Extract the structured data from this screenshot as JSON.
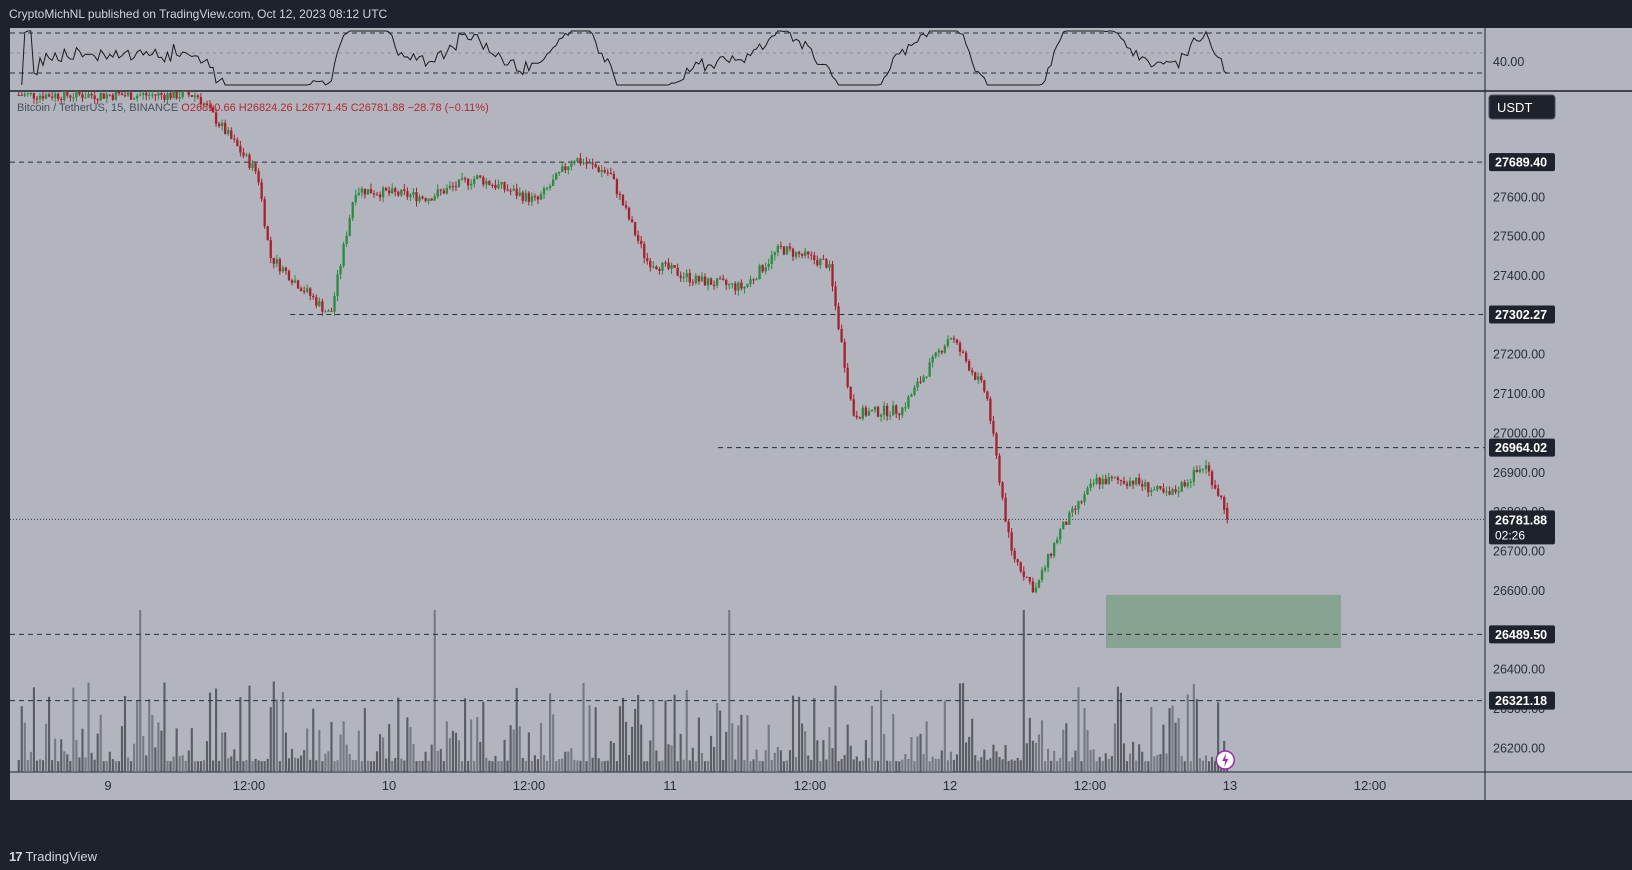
{
  "header": {
    "publish_text": "CryptoMichNL published on TradingView.com, Oct 12, 2023 08:12 UTC"
  },
  "footer": {
    "brand": "TradingView",
    "logo_mark": "17"
  },
  "legend": {
    "symbol": "Bitcoin / TetherUS, 15, BINANCE",
    "open": "O26810.66",
    "high": "H26824.26",
    "low": "L26771.45",
    "close": "C26781.88",
    "change": "−28.78 (−0.11%)"
  },
  "currency_button": "USDT",
  "rsi_panel": {
    "value_label": "40.00"
  },
  "countdown": "02:26",
  "colors": {
    "up": "#2a8c3c",
    "down": "#a8202c",
    "background": "#b2b5be",
    "frame": "#1e222d",
    "zone": "#7a9e82"
  },
  "chart_data": {
    "type": "candlestick",
    "symbol": "Bitcoin / TetherUS",
    "interval": "15",
    "exchange": "BINANCE",
    "ylim": [
      26140,
      27870
    ],
    "y_ticks": [
      26200,
      26300,
      26400,
      26500,
      26600,
      26700,
      26800,
      26900,
      27000,
      27100,
      27200,
      27300,
      27400,
      27500,
      27600,
      27700
    ],
    "x_ticks": [
      "9",
      "12:00",
      "10",
      "12:00",
      "11",
      "12:00",
      "12",
      "12:00",
      "13",
      "12:00"
    ],
    "horizontal_levels": [
      {
        "value": 27689.4,
        "label": "27689.40",
        "from_x_frac": 0.0
      },
      {
        "value": 27302.27,
        "label": "27302.27",
        "from_x_frac": 0.19
      },
      {
        "value": 26964.02,
        "label": "26964.02",
        "from_x_frac": 0.48
      },
      {
        "value": 26489.5,
        "label": "26489.50",
        "from_x_frac": 0.0
      },
      {
        "value": 26321.18,
        "label": "26321.18",
        "from_x_frac": 0.0
      }
    ],
    "last_price": {
      "value": 26781.88,
      "label": "26781.88"
    },
    "highlight_zone": {
      "y_from": 26455,
      "y_to": 26590,
      "x_from_day": "12 ~15:00",
      "x_to_day": "13 ~11:00"
    },
    "price_path_keypoints": [
      [
        "9 ~07:00",
        27860
      ],
      [
        "9 ~12:00",
        27660
      ],
      [
        "9 ~13:00",
        27450
      ],
      [
        "9 ~18:00",
        27300
      ],
      [
        "9 ~20:00",
        27620
      ],
      [
        "10 ~02:00",
        27600
      ],
      [
        "10 ~06:00",
        27650
      ],
      [
        "10 ~11:00",
        27590
      ],
      [
        "10 ~14:00",
        27700
      ],
      [
        "10 ~17:00",
        27660
      ],
      [
        "10 ~20:00",
        27440
      ],
      [
        "11 ~00:00",
        27390
      ],
      [
        "11 ~04:00",
        27370
      ],
      [
        "11 ~07:00",
        27470
      ],
      [
        "11 ~11:00",
        27430
      ],
      [
        "11 ~13:00",
        27050
      ],
      [
        "11 ~17:00",
        27060
      ],
      [
        "11 ~21:00",
        27250
      ],
      [
        "12 ~00:00",
        27100
      ],
      [
        "12 ~02:00",
        26700
      ],
      [
        "12 ~04:00",
        26600
      ],
      [
        "12 ~06:00",
        26750
      ],
      [
        "12 ~09:00",
        26880
      ],
      [
        "12 ~12:00",
        26880
      ],
      [
        "12 ~15:00",
        26840
      ],
      [
        "12 ~18:00",
        26920
      ],
      [
        "12 ~20:00",
        26790
      ]
    ],
    "volume_ylim": [
      0,
      100
    ]
  }
}
